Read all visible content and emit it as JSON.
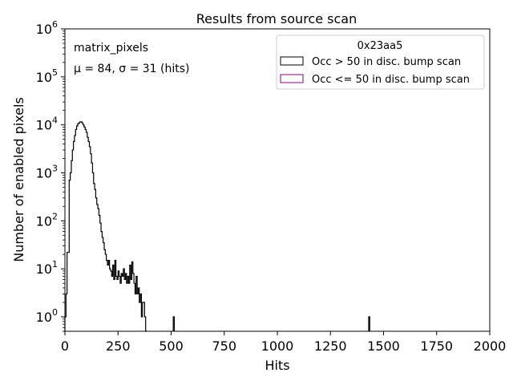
{
  "chart_data": {
    "type": "histogram",
    "title": "Results from source scan",
    "xlabel": "Hits",
    "ylabel": "Number of enabled pixels",
    "xlim": [
      0,
      2000
    ],
    "ylim": [
      0.5,
      1000000
    ],
    "yscale": "log",
    "x_ticks": [
      0,
      250,
      500,
      750,
      1000,
      1250,
      1500,
      1750,
      2000
    ],
    "y_ticks": [
      {
        "value": 1,
        "exp": "0"
      },
      {
        "value": 10,
        "exp": "1"
      },
      {
        "value": 100,
        "exp": "2"
      },
      {
        "value": 1000,
        "exp": "3"
      },
      {
        "value": 10000,
        "exp": "4"
      },
      {
        "value": 100000,
        "exp": "5"
      },
      {
        "value": 1000000,
        "exp": "6"
      }
    ],
    "annotation_name": "matrix_pixels",
    "annotation_stats": "μ = 84, σ = 31 (hits)",
    "legend": {
      "title": "0x23aa5",
      "position": "upper right",
      "entries": [
        {
          "label": "Occ > 50 in disc. bump scan",
          "color": "#000000"
        },
        {
          "label": "Occ <= 50 in disc. bump scan",
          "color": "#8b008b"
        }
      ]
    },
    "series": [
      {
        "name": "Occ > 50 in disc. bump scan",
        "color": "#000000",
        "bins": [
          [
            0,
            1
          ],
          [
            5,
            3
          ],
          [
            10,
            22
          ],
          [
            15,
            22
          ],
          [
            20,
            700
          ],
          [
            25,
            1000
          ],
          [
            30,
            1800
          ],
          [
            35,
            3000
          ],
          [
            40,
            4500
          ],
          [
            45,
            6000
          ],
          [
            50,
            8000
          ],
          [
            55,
            9500
          ],
          [
            60,
            10500
          ],
          [
            65,
            11000
          ],
          [
            70,
            11500
          ],
          [
            75,
            11500
          ],
          [
            80,
            11000
          ],
          [
            85,
            10000
          ],
          [
            90,
            9000
          ],
          [
            95,
            8000
          ],
          [
            100,
            7000
          ],
          [
            105,
            5500
          ],
          [
            110,
            4500
          ],
          [
            115,
            3500
          ],
          [
            120,
            2500
          ],
          [
            125,
            1600
          ],
          [
            130,
            1000
          ],
          [
            135,
            600
          ],
          [
            140,
            450
          ],
          [
            145,
            300
          ],
          [
            150,
            220
          ],
          [
            155,
            180
          ],
          [
            160,
            130
          ],
          [
            165,
            90
          ],
          [
            170,
            60
          ],
          [
            175,
            45
          ],
          [
            180,
            35
          ],
          [
            185,
            25
          ],
          [
            190,
            20
          ],
          [
            195,
            15
          ],
          [
            200,
            12
          ],
          [
            205,
            15
          ],
          [
            210,
            10
          ],
          [
            215,
            9
          ],
          [
            220,
            7
          ],
          [
            225,
            12
          ],
          [
            230,
            6
          ],
          [
            235,
            15
          ],
          [
            240,
            7
          ],
          [
            245,
            6
          ],
          [
            250,
            9
          ],
          [
            255,
            7
          ],
          [
            260,
            5
          ],
          [
            265,
            8
          ],
          [
            270,
            7
          ],
          [
            275,
            10
          ],
          [
            280,
            6
          ],
          [
            285,
            8
          ],
          [
            290,
            5
          ],
          [
            295,
            7
          ],
          [
            300,
            5
          ],
          [
            305,
            12
          ],
          [
            310,
            6
          ],
          [
            315,
            14
          ],
          [
            320,
            8
          ],
          [
            325,
            5
          ],
          [
            330,
            3
          ],
          [
            335,
            7
          ],
          [
            340,
            3
          ],
          [
            345,
            4
          ],
          [
            350,
            2
          ],
          [
            355,
            3
          ],
          [
            360,
            1
          ],
          [
            365,
            2
          ],
          [
            370,
            2
          ],
          [
            375,
            1
          ],
          [
            380,
            0
          ],
          [
            510,
            1
          ],
          [
            1430,
            1
          ]
        ]
      },
      {
        "name": "Occ <= 50 in disc. bump scan",
        "color": "#8b008b",
        "bins": []
      }
    ]
  }
}
